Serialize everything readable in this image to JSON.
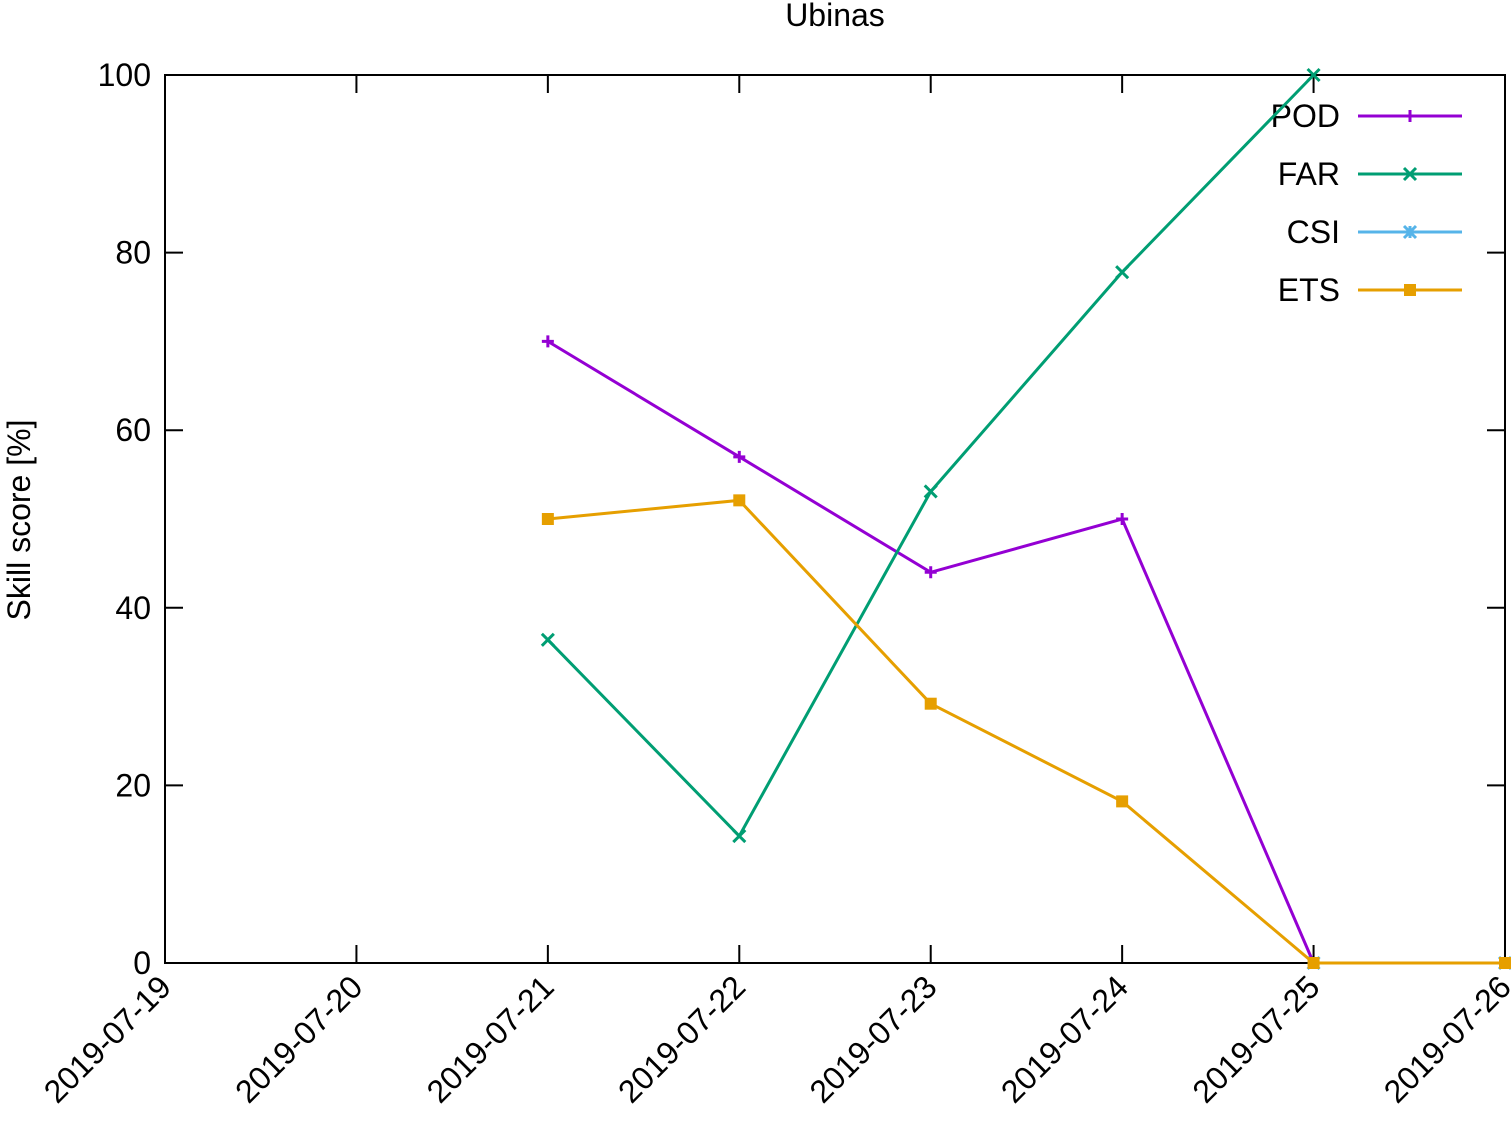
{
  "chart_data": {
    "type": "line",
    "title": "Ubinas",
    "y_label": "Skill score [%]",
    "categories": [
      "2019-07-19",
      "2019-07-20",
      "2019-07-21",
      "2019-07-22",
      "2019-07-23",
      "2019-07-24",
      "2019-07-25",
      "2019-07-26"
    ],
    "series": [
      {
        "name": "POD",
        "color": "#9400d3",
        "marker": "plus",
        "values": [
          null,
          null,
          70,
          57,
          44,
          50,
          0,
          0
        ]
      },
      {
        "name": "FAR",
        "color": "#009e73",
        "marker": "cross",
        "values": [
          null,
          null,
          36.4,
          14.3,
          53.1,
          77.8,
          100,
          null
        ]
      },
      {
        "name": "CSI",
        "color": "#56b4e9",
        "marker": "star",
        "values": [
          null,
          null,
          null,
          null,
          null,
          null,
          0,
          0
        ]
      },
      {
        "name": "ETS",
        "color": "#e69f00",
        "marker": "square",
        "values": [
          null,
          null,
          50,
          52.1,
          29.2,
          18.2,
          0,
          0
        ]
      }
    ],
    "ylim": [
      0,
      100
    ],
    "yticks": [
      0,
      20,
      40,
      60,
      80,
      100
    ],
    "legend": "top-right"
  }
}
